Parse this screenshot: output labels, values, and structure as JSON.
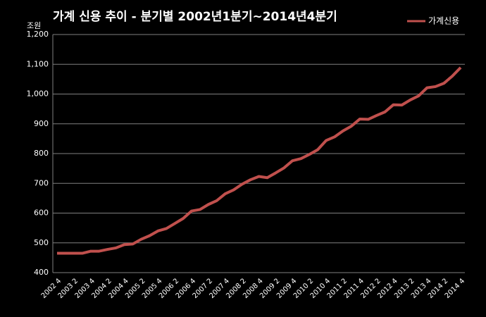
{
  "chart_data": {
    "type": "line",
    "title": "가계 신용 추이 - 분기별 2002년1분기~2014년4분기",
    "y_axis_unit": "조원",
    "categories": [
      "2002 4",
      null,
      "2003 2",
      null,
      "2003 4",
      null,
      "2004 2",
      null,
      "2004 4",
      null,
      "2005 2",
      null,
      "2005 4",
      null,
      "2006 2",
      null,
      "2006 4",
      null,
      "2007 2",
      null,
      "2007 4",
      null,
      "2008 2",
      null,
      "2008 4",
      null,
      "2009 2",
      null,
      "2009 4",
      null,
      "2010 2",
      null,
      "2010 4",
      null,
      "2011 2",
      null,
      "2011 4",
      null,
      "2012 2",
      null,
      "2012 4",
      null,
      "2013 2",
      null,
      "2013 4",
      null,
      "2014 2",
      null,
      "2014 4"
    ],
    "series": [
      {
        "name": "가계신용",
        "color": "#c0504d",
        "values": [
          465,
          465,
          465,
          465,
          472,
          472,
          478,
          483,
          494,
          496,
          512,
          524,
          540,
          548,
          565,
          582,
          607,
          612,
          629,
          642,
          665,
          678,
          697,
          712,
          723,
          719,
          735,
          752,
          776,
          783,
          797,
          813,
          844,
          856,
          876,
          892,
          916,
          915,
          928,
          940,
          964,
          963,
          980,
          994,
          1021,
          1025,
          1036,
          1060,
          1089
        ]
      }
    ],
    "ylim": [
      400,
      1200
    ],
    "yticks": [
      400,
      500,
      600,
      700,
      800,
      900,
      {
        "value": 1000,
        "label": "1,000"
      },
      {
        "value": 1100,
        "label": "1,100"
      },
      {
        "value": 1200,
        "label": "1,200"
      }
    ],
    "grid": true,
    "legend": "top-right"
  }
}
